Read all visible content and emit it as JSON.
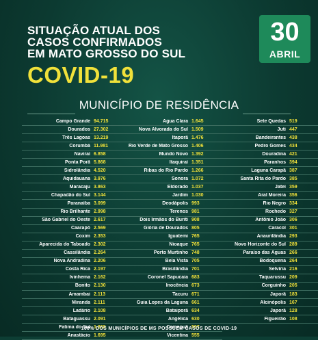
{
  "title_lines": [
    "SITUAÇÃO ATUAL DOS",
    "CASOS CONFIRMADOS",
    "EM MATO GROSSO DO SUL"
  ],
  "headline": "COVID-19",
  "date": {
    "day": "30",
    "month": "ABRIL"
  },
  "subtitle": "MUNICÍPIO DE RESIDÊNCIA",
  "columns": [
    [
      {
        "name": "Campo Grande",
        "value": "94.715"
      },
      {
        "name": "Dourados",
        "value": "27.302"
      },
      {
        "name": "Três Lagoas",
        "value": "13.219"
      },
      {
        "name": "Corumbá",
        "value": "11.981"
      },
      {
        "name": "Naviraí",
        "value": "6.858"
      },
      {
        "name": "Ponta Porã",
        "value": "5.868"
      },
      {
        "name": "Sidrolândia",
        "value": "4.520"
      },
      {
        "name": "Aquidauana",
        "value": "3.976"
      },
      {
        "name": "Maracaju",
        "value": "3.863"
      },
      {
        "name": "Chapadão do Sul",
        "value": "3.144"
      },
      {
        "name": "Paranaíba",
        "value": "3.099"
      },
      {
        "name": "Rio Brilhante",
        "value": "2.998"
      },
      {
        "name": "São Gabriel do Oeste",
        "value": "2.617"
      },
      {
        "name": "Caarapó",
        "value": "2.569"
      },
      {
        "name": "Coxim",
        "value": "2.353"
      },
      {
        "name": "Aparecida do Taboado",
        "value": "2.302"
      },
      {
        "name": "Cassilândia",
        "value": "2.264"
      },
      {
        "name": "Nova Andradina",
        "value": "2.206"
      },
      {
        "name": "Costa Rica",
        "value": "2.197"
      },
      {
        "name": "Ivinhema",
        "value": "2.162"
      },
      {
        "name": "Bonito",
        "value": "2.130"
      },
      {
        "name": "Amambai",
        "value": "2.113"
      },
      {
        "name": "Miranda",
        "value": "2.111"
      },
      {
        "name": "Ladário",
        "value": "2.108"
      },
      {
        "name": "Bataguassu",
        "value": "2.091"
      },
      {
        "name": "Fatima do Sul",
        "value": "1.868"
      },
      {
        "name": "Anastácio",
        "value": "1.695"
      }
    ],
    [
      {
        "name": "Água Clara",
        "value": "1.645"
      },
      {
        "name": "Nova Alvorada do Sul",
        "value": "1.509"
      },
      {
        "name": "Itaporã",
        "value": "1.476"
      },
      {
        "name": "Rio Verde de Mato Grosso",
        "value": "1.406"
      },
      {
        "name": "Mundo Novo",
        "value": "1.392"
      },
      {
        "name": "Itaquiraí",
        "value": "1.351"
      },
      {
        "name": "Ribas do Rio Pardo",
        "value": "1.266"
      },
      {
        "name": "Sonora",
        "value": "1.072"
      },
      {
        "name": "Eldorado",
        "value": "1.037"
      },
      {
        "name": "Jardim",
        "value": "1.030"
      },
      {
        "name": "Deodápolis",
        "value": "993"
      },
      {
        "name": "Terenos",
        "value": "981"
      },
      {
        "name": "Dois Irmãos do Buriti",
        "value": "908"
      },
      {
        "name": "Glória de Dourados",
        "value": "805"
      },
      {
        "name": "Iguatemi",
        "value": "765"
      },
      {
        "name": "Nioaque",
        "value": "765"
      },
      {
        "name": "Porto Murtinho",
        "value": "748"
      },
      {
        "name": "Bela Vista",
        "value": "705"
      },
      {
        "name": "Brasilândia",
        "value": "701"
      },
      {
        "name": "Coronel Sapucaia",
        "value": "683"
      },
      {
        "name": "Inocência",
        "value": "673"
      },
      {
        "name": "Tacuru",
        "value": "671"
      },
      {
        "name": "Guia Lopes da Laguna",
        "value": "661"
      },
      {
        "name": "Bataiporã",
        "value": "634"
      },
      {
        "name": "Angélica",
        "value": "630"
      },
      {
        "name": "Camapuã",
        "value": "597"
      },
      {
        "name": "Vicentina",
        "value": "555"
      }
    ],
    [
      {
        "name": "Sete Quedas",
        "value": "519"
      },
      {
        "name": "Juti",
        "value": "447"
      },
      {
        "name": "Bandeirantes",
        "value": "438"
      },
      {
        "name": "Pedro Gomes",
        "value": "434"
      },
      {
        "name": "Douradina",
        "value": "421"
      },
      {
        "name": "Paranhos",
        "value": "394"
      },
      {
        "name": "Laguna Carapã",
        "value": "387"
      },
      {
        "name": "Santa Rita do Pardo",
        "value": "385"
      },
      {
        "name": "Jateí",
        "value": "359"
      },
      {
        "name": "Aral Moreira",
        "value": "356"
      },
      {
        "name": "Rio Negro",
        "value": "334"
      },
      {
        "name": "Rochedo",
        "value": "327"
      },
      {
        "name": "Antônio João",
        "value": "306"
      },
      {
        "name": "Caracol",
        "value": "301"
      },
      {
        "name": "Anaurilândia",
        "value": "293"
      },
      {
        "name": "Novo Horizonte do Sul",
        "value": "289"
      },
      {
        "name": "Paraíso das Águas",
        "value": "266"
      },
      {
        "name": "Bodoquena",
        "value": "264"
      },
      {
        "name": "Selvíria",
        "value": "216"
      },
      {
        "name": "Taquarussu",
        "value": "209"
      },
      {
        "name": "Corguinho",
        "value": "205"
      },
      {
        "name": "Japorã",
        "value": "183"
      },
      {
        "name": "Alcinópolis",
        "value": "167"
      },
      {
        "name": "Japorã",
        "value": "128"
      },
      {
        "name": "Figueirão",
        "value": "108"
      }
    ]
  ],
  "footer": "100% DOS MUNICÍPIOS DE MS POSSUEM CASOS DE COVID-19"
}
